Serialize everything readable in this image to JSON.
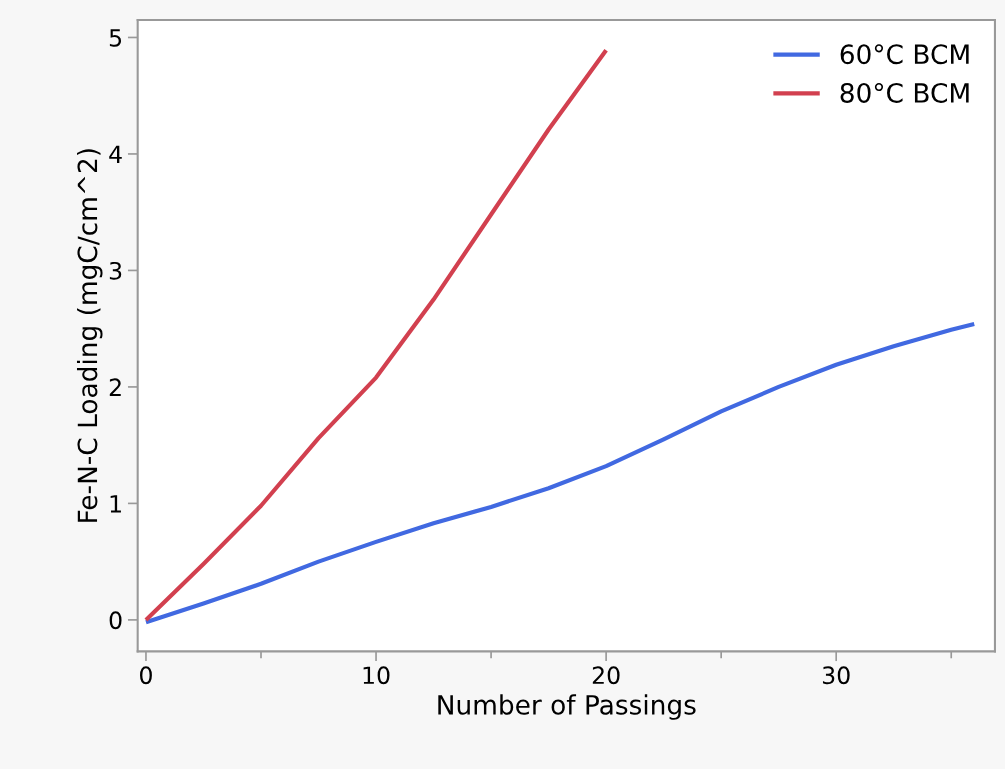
{
  "chart_data": {
    "type": "line",
    "xlabel": "Number of Passings",
    "ylabel": "Fe-N-C Loading (mgC/cm^2)",
    "xlim": [
      -0.36,
      36.9
    ],
    "ylim": [
      -0.27,
      5.15
    ],
    "xticks": [
      0,
      10,
      20,
      30
    ],
    "yticks": [
      0,
      1,
      2,
      3,
      4,
      5
    ],
    "grid": false,
    "legend": "top right",
    "line_style": "solid",
    "marker": "none",
    "series": [
      {
        "name": "60°C BCM",
        "color": "#4169e1",
        "x": [
          0,
          2.5,
          5,
          7.5,
          10,
          12.5,
          15,
          17.5,
          20,
          22.5,
          25,
          27.5,
          30,
          32.5,
          35,
          36
        ],
        "values": [
          -0.02,
          0.14,
          0.31,
          0.5,
          0.67,
          0.83,
          0.97,
          1.13,
          1.32,
          1.55,
          1.79,
          2.0,
          2.19,
          2.35,
          2.49,
          2.54
        ]
      },
      {
        "name": "80°C BCM",
        "color": "#d2404f",
        "x": [
          0,
          2.5,
          5,
          7.5,
          10,
          12.5,
          15,
          17.5,
          20
        ],
        "values": [
          0,
          0.48,
          0.98,
          1.56,
          2.08,
          2.75,
          3.48,
          4.21,
          4.89
        ]
      }
    ]
  }
}
